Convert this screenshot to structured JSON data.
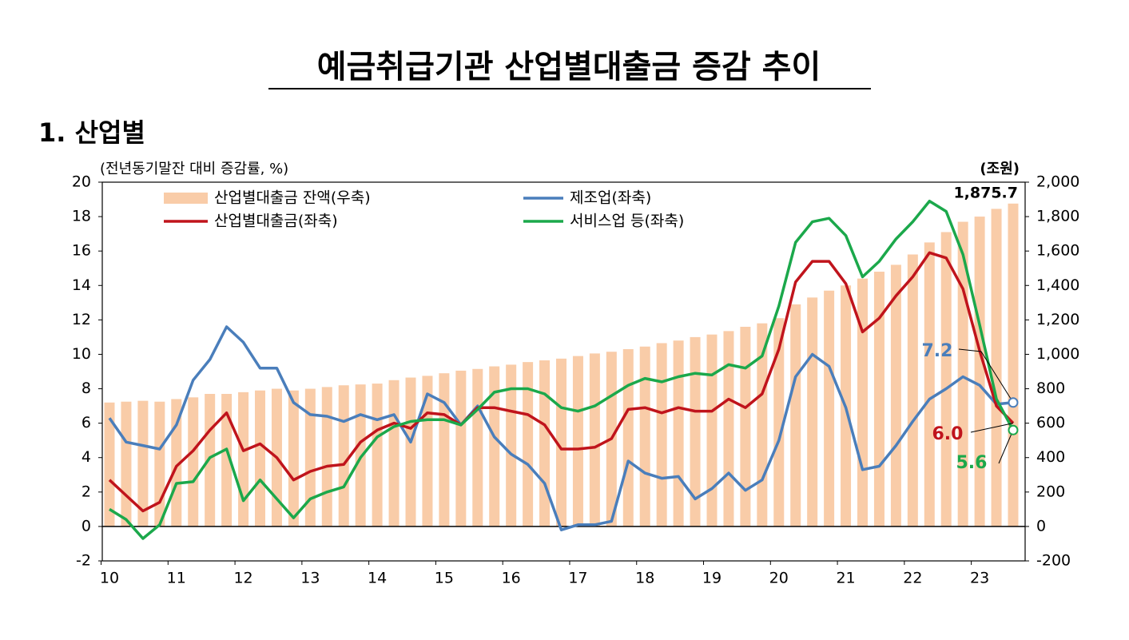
{
  "chart_data": {
    "type": "bar",
    "title": "예금취급기관 산업별대출금 증감 추이",
    "subtitle": "1. 산업별",
    "ylabel": "(전년동기말잔 대비 증감률, %)",
    "y2label": "(조원)",
    "categories": [
      "10",
      null,
      null,
      null,
      "11",
      null,
      null,
      null,
      "12",
      null,
      null,
      null,
      "13",
      null,
      null,
      null,
      "14",
      null,
      null,
      null,
      "15",
      null,
      null,
      null,
      "16",
      null,
      null,
      null,
      "17",
      null,
      null,
      null,
      "18",
      null,
      null,
      null,
      "19",
      null,
      null,
      null,
      "20",
      null,
      null,
      null,
      "21",
      null,
      null,
      null,
      "22",
      null,
      null,
      null,
      "23",
      null,
      null
    ],
    "ylim": [
      -2,
      20
    ],
    "yticks": [
      -2,
      0,
      2,
      4,
      6,
      8,
      10,
      12,
      14,
      16,
      18,
      20
    ],
    "y2lim": [
      -200,
      2000
    ],
    "y2ticks": [
      -200,
      0,
      200,
      400,
      600,
      800,
      {
        "value": 1000,
        "label": "1,000"
      },
      {
        "value": 1200,
        "label": "1,200"
      },
      {
        "value": 1400,
        "label": "1,400"
      },
      {
        "value": 1600,
        "label": "1,600"
      },
      {
        "value": 1800,
        "label": "1,800"
      },
      {
        "value": 2000,
        "label": "2,000"
      }
    ],
    "series": [
      {
        "name": "산업별대출금 잔액(우축)",
        "type": "bar",
        "axis": "y2",
        "color": "#f9cca8",
        "values": [
          720,
          725,
          730,
          725,
          740,
          750,
          770,
          770,
          780,
          790,
          800,
          790,
          800,
          810,
          820,
          825,
          830,
          850,
          865,
          875,
          890,
          905,
          915,
          930,
          940,
          955,
          965,
          975,
          990,
          1005,
          1015,
          1030,
          1045,
          1065,
          1080,
          1100,
          1115,
          1135,
          1160,
          1180,
          1210,
          1290,
          1330,
          1370,
          1400,
          1440,
          1480,
          1520,
          1580,
          1650,
          1710,
          1770,
          1800,
          1845,
          1875.7
        ],
        "value_labels": [
          null,
          null,
          null,
          null,
          null,
          null,
          null,
          null,
          null,
          null,
          null,
          null,
          null,
          null,
          null,
          null,
          null,
          null,
          null,
          null,
          null,
          null,
          null,
          null,
          null,
          null,
          null,
          null,
          null,
          null,
          null,
          null,
          null,
          null,
          null,
          null,
          null,
          null,
          null,
          null,
          null,
          null,
          null,
          null,
          null,
          null,
          null,
          null,
          null,
          null,
          null,
          null,
          null,
          null,
          "1,875.7"
        ]
      },
      {
        "name": "제조업(좌축)",
        "type": "line",
        "color": "#4a7ebb",
        "values": [
          6.3,
          4.9,
          4.7,
          4.5,
          5.9,
          8.5,
          9.7,
          11.6,
          10.7,
          9.2,
          9.2,
          7.2,
          6.5,
          6.4,
          6.1,
          6.5,
          6.2,
          6.5,
          4.9,
          7.7,
          7.2,
          5.9,
          7.0,
          5.2,
          4.2,
          3.6,
          2.5,
          -0.2,
          0.1,
          0.1,
          0.3,
          3.8,
          3.1,
          2.8,
          2.9,
          1.6,
          2.2,
          3.1,
          2.1,
          2.7,
          5.0,
          8.7,
          10.0,
          9.3,
          6.9,
          3.3,
          3.5,
          4.7,
          6.1,
          7.4,
          8.0,
          8.7,
          8.2,
          7.1,
          7.2
        ],
        "value_labels": [
          null,
          null,
          null,
          null,
          null,
          null,
          null,
          null,
          null,
          null,
          null,
          null,
          null,
          null,
          null,
          null,
          null,
          null,
          null,
          null,
          null,
          null,
          null,
          null,
          null,
          null,
          null,
          null,
          null,
          null,
          null,
          null,
          null,
          null,
          null,
          null,
          null,
          null,
          null,
          null,
          null,
          null,
          null,
          null,
          null,
          null,
          null,
          null,
          null,
          null,
          null,
          null,
          null,
          null,
          "7.2"
        ]
      },
      {
        "name": "산업별대출금(좌축)",
        "type": "line",
        "color": "#c0141c",
        "values": [
          2.7,
          1.8,
          0.9,
          1.4,
          3.5,
          4.4,
          5.6,
          6.6,
          4.4,
          4.8,
          4.0,
          2.7,
          3.2,
          3.5,
          3.6,
          4.9,
          5.6,
          6.0,
          5.7,
          6.6,
          6.5,
          5.9,
          6.9,
          6.9,
          6.7,
          6.5,
          5.9,
          4.5,
          4.5,
          4.6,
          5.1,
          6.8,
          6.9,
          6.6,
          6.9,
          6.7,
          6.7,
          7.4,
          6.9,
          7.7,
          10.3,
          14.2,
          15.4,
          15.4,
          14.1,
          11.3,
          12.1,
          13.4,
          14.5,
          15.9,
          15.6,
          13.8,
          10.2,
          7.0,
          6.0
        ],
        "value_labels": [
          null,
          null,
          null,
          null,
          null,
          null,
          null,
          null,
          null,
          null,
          null,
          null,
          null,
          null,
          null,
          null,
          null,
          null,
          null,
          null,
          null,
          null,
          null,
          null,
          null,
          null,
          null,
          null,
          null,
          null,
          null,
          null,
          null,
          null,
          null,
          null,
          null,
          null,
          null,
          null,
          null,
          null,
          null,
          null,
          null,
          null,
          null,
          null,
          null,
          null,
          null,
          null,
          null,
          null,
          "6.0"
        ]
      },
      {
        "name": "서비스업 등(좌축)",
        "type": "line",
        "color": "#1ba84b",
        "values": [
          1.0,
          0.4,
          -0.7,
          0.1,
          2.5,
          2.6,
          4.0,
          4.5,
          1.5,
          2.7,
          1.6,
          0.5,
          1.6,
          2.0,
          2.3,
          4.0,
          5.2,
          5.8,
          6.1,
          6.2,
          6.2,
          5.9,
          6.8,
          7.8,
          8.0,
          8.0,
          7.7,
          6.9,
          6.7,
          7.0,
          7.6,
          8.2,
          8.6,
          8.4,
          8.7,
          8.9,
          8.8,
          9.4,
          9.2,
          9.9,
          12.8,
          16.5,
          17.7,
          17.9,
          16.9,
          14.5,
          15.4,
          16.7,
          17.7,
          18.9,
          18.3,
          15.8,
          11.7,
          7.4,
          5.6
        ],
        "value_labels": [
          null,
          null,
          null,
          null,
          null,
          null,
          null,
          null,
          null,
          null,
          null,
          null,
          null,
          null,
          null,
          null,
          null,
          null,
          null,
          null,
          null,
          null,
          null,
          null,
          null,
          null,
          null,
          null,
          null,
          null,
          null,
          null,
          null,
          null,
          null,
          null,
          null,
          null,
          null,
          null,
          null,
          null,
          null,
          null,
          null,
          null,
          null,
          null,
          null,
          null,
          null,
          null,
          null,
          null,
          "5.6"
        ]
      }
    ]
  }
}
